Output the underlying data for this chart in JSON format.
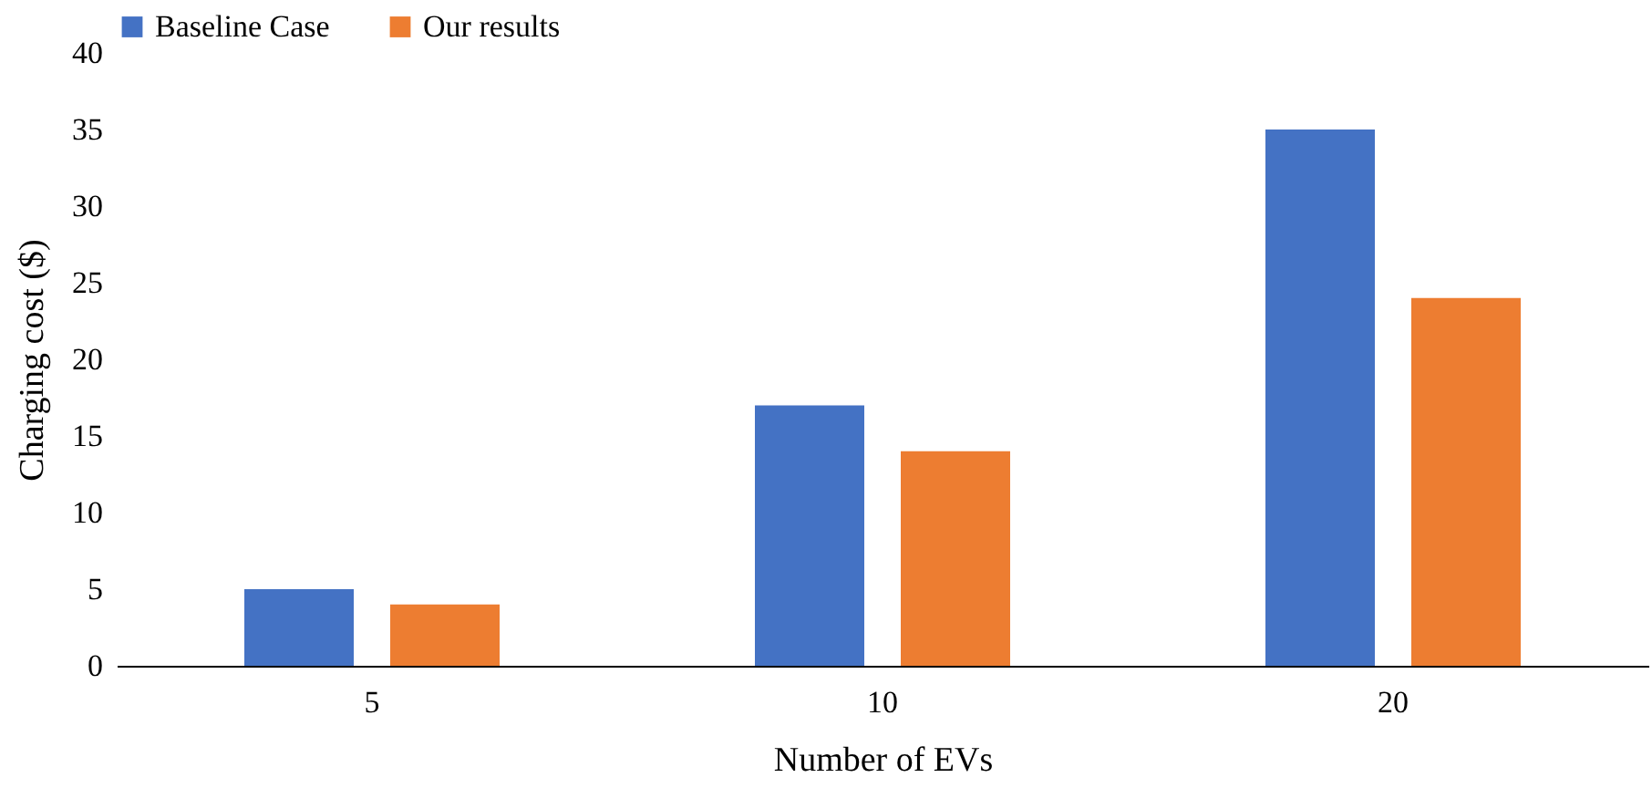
{
  "chart_data": {
    "type": "bar",
    "xlabel": "Number of EVs",
    "ylabel": "Charging cost ($)",
    "categories": [
      "5",
      "10",
      "20"
    ],
    "series": [
      {
        "name": "Baseline Case",
        "color": "#4472c4",
        "values": [
          5,
          17,
          35
        ]
      },
      {
        "name": "Our results",
        "color": "#ed7d31",
        "values": [
          4,
          14,
          24
        ]
      }
    ],
    "ylim": [
      0,
      40
    ],
    "yticks": [
      0,
      5,
      10,
      15,
      20,
      25,
      30,
      35,
      40
    ],
    "legend": "top",
    "grid": false
  }
}
